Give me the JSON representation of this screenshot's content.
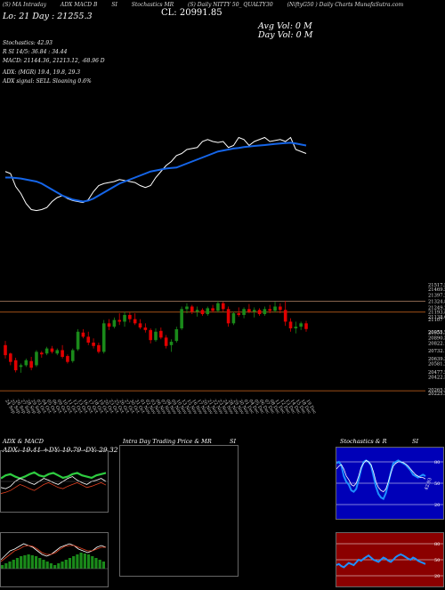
{
  "header": {
    "ticker_items": [
      "(S) MA  Intraday",
      "ADX MACD  B",
      "SI",
      "Stochastics MR",
      "(S)  Daily NITTY 50_ QUALTY30",
      "(NiftyG50 ) Daily Charts MunafaSutra.com"
    ],
    "low_label": "Lo: 21 Day : 21255.3",
    "close_label": "CL: 20991.85",
    "avg_vol_label": "Avg Vol: 0  M",
    "day_vol_label": "Day Vol: 0  M"
  },
  "indicators": {
    "stochastics": "Stochastics: 42.93",
    "rsi": "R            SI 14/5: 36.84  : 34.44",
    "macd": "MACD: 21144.36,  21213.12, -68.96  D",
    "adx": "ADX:                          (MGR) 19.4,  19.8,  29.3",
    "adx_signal": "ADX  signal: SELL  Sloaning 0.6%"
  },
  "colors": {
    "up": "#1a8a1a",
    "down": "#e10000",
    "ma_blue": "#1565e8",
    "price_line": "#ffffff",
    "level_orange": "#d2691e"
  },
  "chart_data": {
    "type": "candlestick",
    "dates": [
      "24 Sep",
      "25 Sep",
      "26 Sep",
      "27 Sep",
      "28 Sep",
      "29 Sep",
      "03 Oct",
      "04 Oct",
      "05 Oct",
      "06 Oct",
      "09 Oct",
      "10 Oct",
      "11 Oct",
      "12 Oct",
      "13 Oct",
      "16 Oct",
      "17 Oct",
      "18 Oct",
      "19 Oct",
      "20 Oct",
      "23 Oct",
      "25 Oct",
      "26 Oct",
      "27 Oct",
      "30 Oct",
      "31 Oct",
      "01 Nov",
      "02 Nov",
      "03 Nov",
      "06 Nov",
      "07 Nov",
      "08 Nov",
      "09 Nov",
      "10 Nov",
      "13 Nov",
      "15 Nov",
      "16 Nov",
      "17 Nov",
      "20 Nov",
      "21 Nov",
      "22 Nov",
      "23 Nov",
      "24 Nov",
      "28 Nov",
      "29 Nov",
      "30 Nov",
      "01 Dec",
      "04 Dec",
      "05 Dec",
      "06 Dec",
      "07 Dec",
      "08 Dec",
      "11 Dec",
      "12 Dec",
      "13 Dec",
      "14 Dec",
      "15 Dec",
      "18 Dec",
      "19 Dec"
    ],
    "ohlc": [
      [
        20800,
        20850,
        20640,
        20680
      ],
      [
        20700,
        20710,
        20560,
        20600
      ],
      [
        20620,
        20650,
        20475,
        20500
      ],
      [
        20540,
        20580,
        20470,
        20560
      ],
      [
        20560,
        20640,
        20540,
        20620
      ],
      [
        20610,
        20660,
        20500,
        20530
      ],
      [
        20560,
        20740,
        20540,
        20720
      ],
      [
        20710,
        20730,
        20650,
        20690
      ],
      [
        20700,
        20780,
        20680,
        20760
      ],
      [
        20760,
        20790,
        20700,
        20720
      ],
      [
        20700,
        20760,
        20680,
        20740
      ],
      [
        20740,
        20800,
        20640,
        20660
      ],
      [
        20670,
        20690,
        20580,
        20600
      ],
      [
        20610,
        20760,
        20590,
        20740
      ],
      [
        20750,
        20990,
        20730,
        20960
      ],
      [
        20950,
        20990,
        20880,
        20900
      ],
      [
        20900,
        20960,
        20800,
        20830
      ],
      [
        20830,
        20880,
        20760,
        20790
      ],
      [
        20800,
        20830,
        20700,
        20720
      ],
      [
        20720,
        21100,
        20700,
        21060
      ],
      [
        21060,
        21110,
        20980,
        21020
      ],
      [
        21020,
        21130,
        21000,
        21100
      ],
      [
        21100,
        21180,
        21040,
        21080
      ],
      [
        21080,
        21200,
        21020,
        21160
      ],
      [
        21160,
        21190,
        21070,
        21110
      ],
      [
        21110,
        21180,
        21040,
        21060
      ],
      [
        21060,
        21110,
        20990,
        21010
      ],
      [
        21010,
        21060,
        20950,
        20980
      ],
      [
        20980,
        21000,
        20820,
        20860
      ],
      [
        20860,
        21000,
        20840,
        20960
      ],
      [
        20970,
        21010,
        20870,
        20890
      ],
      [
        20890,
        20920,
        20760,
        20790
      ],
      [
        20800,
        20870,
        20720,
        20840
      ],
      [
        20850,
        21020,
        20830,
        20990
      ],
      [
        21000,
        21260,
        20980,
        21230
      ],
      [
        21230,
        21300,
        21180,
        21260
      ],
      [
        21260,
        21280,
        21170,
        21200
      ],
      [
        21200,
        21260,
        21140,
        21220
      ],
      [
        21220,
        21240,
        21150,
        21170
      ],
      [
        21170,
        21260,
        21150,
        21240
      ],
      [
        21240,
        21280,
        21190,
        21210
      ],
      [
        21210,
        21330,
        21190,
        21300
      ],
      [
        21300,
        21320,
        21200,
        21230
      ],
      [
        21230,
        21260,
        21020,
        21060
      ],
      [
        21060,
        21200,
        21040,
        21180
      ],
      [
        21180,
        21250,
        21140,
        21160
      ],
      [
        21160,
        21250,
        21120,
        21230
      ],
      [
        21230,
        21290,
        21180,
        21200
      ],
      [
        21200,
        21250,
        21130,
        21220
      ],
      [
        21220,
        21240,
        21150,
        21170
      ],
      [
        21170,
        21260,
        21150,
        21230
      ],
      [
        21230,
        21280,
        21180,
        21210
      ],
      [
        21210,
        21320,
        21190,
        21260
      ],
      [
        21260,
        21300,
        21180,
        21220
      ],
      [
        21220,
        21330,
        21030,
        21080
      ],
      [
        21080,
        21120,
        20960,
        21000
      ],
      [
        21000,
        21080,
        20940,
        21020
      ],
      [
        21020,
        21080,
        20980,
        21060
      ],
      [
        21060,
        21090,
        20960,
        20992
      ]
    ],
    "price_line": [
      21150,
      21140,
      21075,
      21040,
      20990,
      20960,
      20955,
      20960,
      20970,
      21000,
      21020,
      21030,
      21015,
      21005,
      21000,
      20995,
      21010,
      21050,
      21080,
      21090,
      21095,
      21100,
      21110,
      21105,
      21100,
      21095,
      21080,
      21070,
      21080,
      21120,
      21150,
      21180,
      21200,
      21230,
      21240,
      21260,
      21265,
      21270,
      21300,
      21310,
      21300,
      21295,
      21300,
      21270,
      21280,
      21320,
      21310,
      21280,
      21300,
      21310,
      21320,
      21300,
      21305,
      21310,
      21300,
      21320,
      21260,
      21250,
      21240
    ],
    "ma_line": [
      21120,
      21120,
      21118,
      21115,
      21110,
      21105,
      21100,
      21090,
      21075,
      21060,
      21045,
      21030,
      21020,
      21010,
      21005,
      21000,
      21005,
      21015,
      21030,
      21045,
      21060,
      21075,
      21090,
      21100,
      21110,
      21120,
      21130,
      21140,
      21150,
      21155,
      21160,
      21165,
      21168,
      21170,
      21180,
      21190,
      21200,
      21210,
      21220,
      21230,
      21240,
      21250,
      21255,
      21260,
      21265,
      21268,
      21272,
      21275,
      21278,
      21280,
      21282,
      21285,
      21288,
      21290,
      21292,
      21294,
      21290,
      21285,
      21280
    ],
    "y_ticks": [
      "21517.5",
      "21469.55",
      "21397.2",
      "21324.85",
      "21249.25",
      "21193.85",
      "21138.69",
      "21107",
      "20955.75",
      "20951.52",
      "20890.5",
      "20822.15",
      "20732.14",
      "20639.38",
      "20581.25",
      "20477.51",
      "20422.5",
      "20265.5",
      "20225.5"
    ],
    "levels": [
      21324.85,
      21193.85,
      20255.5
    ]
  },
  "bottom_panels": {
    "adx_title": "ADX  & MACD",
    "adx_values": "ADX: 19.41  +DY: 19.79  -DY: 29.32",
    "intra_title": "Intra  Day Trading Price  & MR",
    "intra_si": "SI",
    "stoch_title": "Stochastics & R",
    "stoch_si": "SI",
    "stoch_levels": [
      "80",
      "50",
      "20"
    ],
    "rsi_levels": [
      "80",
      "50",
      "20"
    ],
    "stoch_value": "42.93",
    "stoch_series": [
      78,
      80,
      75,
      60,
      52,
      48,
      40,
      38,
      42,
      55,
      70,
      80,
      82,
      80,
      75,
      60,
      45,
      35,
      30,
      28,
      36,
      50,
      65,
      78,
      80,
      82,
      80,
      78,
      76,
      72,
      68,
      62,
      60,
      58,
      60,
      62,
      60
    ],
    "stoch_k": [
      70,
      74,
      76,
      70,
      60,
      55,
      48,
      46,
      50,
      60,
      72,
      78,
      82,
      80,
      76,
      66,
      52,
      44,
      40,
      38,
      42,
      52,
      64,
      74,
      78,
      80,
      80,
      79,
      77,
      74,
      70,
      66,
      62,
      60,
      58,
      58,
      56
    ],
    "rsi_series": [
      40,
      42,
      38,
      36,
      40,
      44,
      42,
      40,
      45,
      50,
      48,
      52,
      55,
      58,
      54,
      50,
      48,
      46,
      50,
      54,
      52,
      48,
      46,
      50,
      55,
      58,
      60,
      58,
      55,
      52,
      50,
      54,
      52,
      48,
      46,
      44,
      42
    ],
    "adx_green": [
      55,
      60,
      62,
      58,
      55,
      58,
      62,
      65,
      60,
      58,
      62,
      64,
      60,
      56,
      58,
      62,
      64,
      60,
      58,
      56,
      60,
      62,
      64
    ],
    "adx_white": [
      40,
      38,
      42,
      50,
      55,
      52,
      48,
      45,
      50,
      55,
      52,
      48,
      45,
      50,
      55,
      58,
      52,
      48,
      45,
      50,
      52,
      55,
      50
    ],
    "adx_red": [
      30,
      32,
      35,
      40,
      45,
      42,
      38,
      35,
      40,
      45,
      48,
      44,
      40,
      38,
      42,
      45,
      48,
      44,
      40,
      42,
      45,
      48,
      44
    ],
    "macd_hist": [
      4,
      6,
      8,
      10,
      12,
      14,
      15,
      16,
      15,
      14,
      12,
      10,
      8,
      6,
      4,
      6,
      8,
      10,
      12,
      14,
      16,
      18,
      17,
      16,
      14,
      12,
      10,
      8
    ],
    "macd_white": [
      30,
      35,
      40,
      42,
      45,
      48,
      46,
      44,
      40,
      36,
      34,
      36,
      40,
      44,
      46,
      48,
      46,
      42,
      40,
      38,
      40,
      44,
      46,
      44
    ],
    "macd_red": [
      28,
      32,
      36,
      40,
      42,
      45,
      46,
      45,
      42,
      38,
      36,
      36,
      38,
      42,
      45,
      46,
      46,
      44,
      42,
      40,
      40,
      42,
      44,
      44
    ]
  }
}
